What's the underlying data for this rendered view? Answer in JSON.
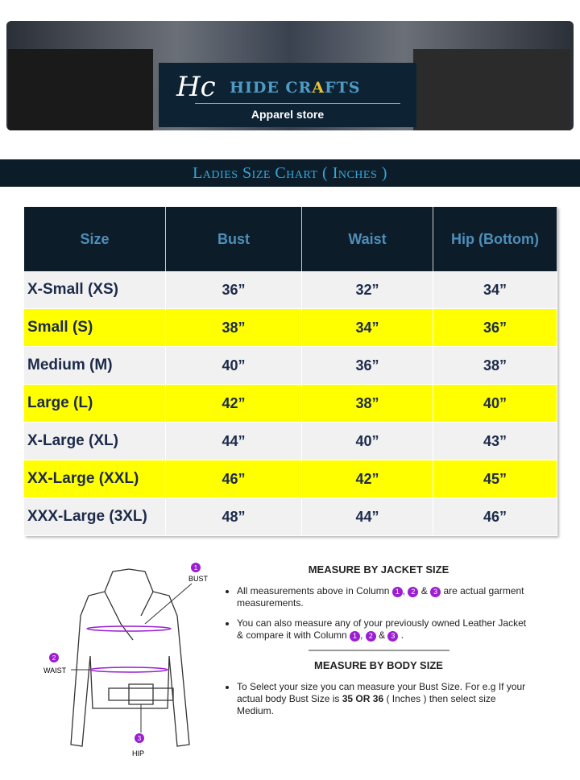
{
  "banner": {
    "logo_mark": "Hc",
    "brand_name_pre": "HIDE CR",
    "brand_name_a": "A",
    "brand_name_post": "FTS",
    "tagline": "Apparel store"
  },
  "title": "Ladies Size Chart ( Inches )",
  "table": {
    "headers": [
      "Size",
      "Bust",
      "Waist",
      "Hip (Bottom)"
    ],
    "rows": [
      [
        "X-Small (XS)",
        "36”",
        "32”",
        "34”"
      ],
      [
        "Small (S)",
        "38”",
        "34”",
        "36”"
      ],
      [
        "Medium (M)",
        "40”",
        "36”",
        "38”"
      ],
      [
        "Large (L)",
        "42”",
        "38”",
        "40”"
      ],
      [
        "X-Large (XL)",
        "44”",
        "40”",
        "43”"
      ],
      [
        "XX-Large (XXL)",
        "46”",
        "42”",
        "45”"
      ],
      [
        "XXX-Large (3XL)",
        "48”",
        "44”",
        "46”"
      ]
    ]
  },
  "diagram": {
    "bust": "BUST",
    "waist": "WAIST",
    "hip": "HIP",
    "n1": "1",
    "n2": "2",
    "n3": "3"
  },
  "jacket": {
    "heading": "MEASURE BY JACKET SIZE",
    "b1_pre": "All measurements above in Column",
    "b1_post": "are actual garment measurements.",
    "b2_pre": "You can also measure any of your previously owned Leather Jacket & compare it with Column"
  },
  "body": {
    "heading": "MEASURE BY BODY SIZE",
    "b1_pre": "To Select your size you can measure your Bust Size. For e.g If your actual body Bust Size is",
    "b1_bold": "35 OR 36",
    "b1_post": "( Inches ) then select size Medium."
  },
  "colors": {
    "header_bg": "#0c1d29",
    "highlight": "#ffff00",
    "marker": "#9b1fd1"
  }
}
